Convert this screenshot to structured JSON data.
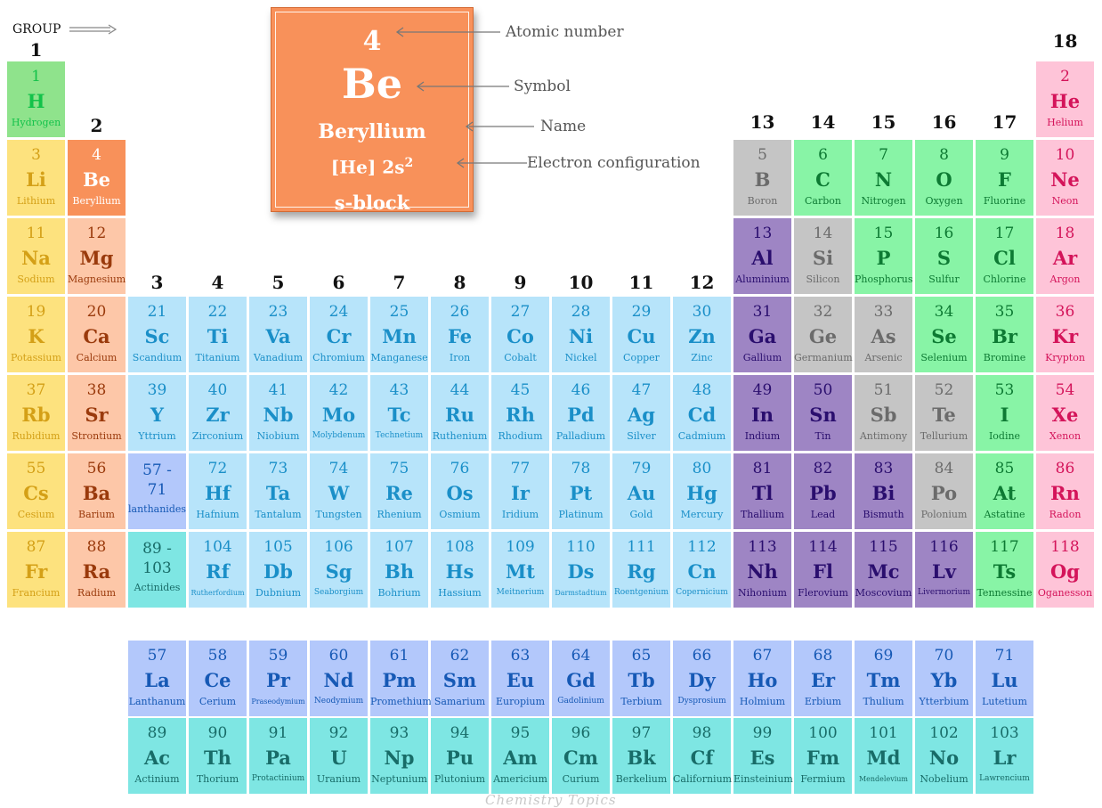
{
  "colors": {
    "alkali": {
      "bg": "#fde27e",
      "fg": "#d4a017"
    },
    "alkaline": {
      "bg": "#fdc7a8",
      "fg": "#9a3a0c"
    },
    "transition": {
      "bg": "#b7e4fa",
      "fg": "#1a8fc8"
    },
    "lanthanide": {
      "bg": "#b3c8fb",
      "fg": "#1659b5"
    },
    "actinide": {
      "bg": "#7ee6e3",
      "fg": "#186c68"
    },
    "postTransition": {
      "bg": "#9e85c4",
      "fg": "#2a0e6e"
    },
    "metalloid": {
      "bg": "#c5c5c5",
      "fg": "#6b6b6b"
    },
    "nonmetal": {
      "bg": "#88f4a6",
      "fg": "#0d7a33"
    },
    "noble": {
      "bg": "#fec4d8",
      "fg": "#d4145a"
    },
    "hydrogen": {
      "bg": "#8fe38c",
      "fg": "#13c24a"
    },
    "beryllium": {
      "bg": "#f8915a",
      "fg": "#ffffff"
    }
  },
  "group_label": "GROUP",
  "group_numbers": [
    "1",
    "2",
    "3",
    "4",
    "5",
    "6",
    "7",
    "8",
    "9",
    "10",
    "11",
    "12",
    "13",
    "14",
    "15",
    "16",
    "17",
    "18"
  ],
  "legend": {
    "number": "4",
    "symbol": "Be",
    "name": "Beryllium",
    "configuration": "[He] 2s",
    "configuration_sup": "2",
    "block": "s-block",
    "labels": {
      "atomic_number": "Atomic number",
      "symbol": "Symbol",
      "name": "Name",
      "configuration": "Electron configuration"
    }
  },
  "elements": [
    {
      "n": "1",
      "s": "H",
      "name": "Hydrogen",
      "cat": "hydrogen",
      "row": 1,
      "col": 1
    },
    {
      "n": "2",
      "s": "He",
      "name": "Helium",
      "cat": "noble",
      "row": 1,
      "col": 18
    },
    {
      "n": "3",
      "s": "Li",
      "name": "Lithium",
      "cat": "alkali",
      "row": 2,
      "col": 1
    },
    {
      "n": "4",
      "s": "Be",
      "name": "Beryllium",
      "cat": "beryllium",
      "row": 2,
      "col": 2
    },
    {
      "n": "5",
      "s": "B",
      "name": "Boron",
      "cat": "metalloid",
      "row": 2,
      "col": 13
    },
    {
      "n": "6",
      "s": "C",
      "name": "Carbon",
      "cat": "nonmetal",
      "row": 2,
      "col": 14
    },
    {
      "n": "7",
      "s": "N",
      "name": "Nitrogen",
      "cat": "nonmetal",
      "row": 2,
      "col": 15
    },
    {
      "n": "8",
      "s": "O",
      "name": "Oxygen",
      "cat": "nonmetal",
      "row": 2,
      "col": 16
    },
    {
      "n": "9",
      "s": "F",
      "name": "Fluorine",
      "cat": "nonmetal",
      "row": 2,
      "col": 17
    },
    {
      "n": "10",
      "s": "Ne",
      "name": "Neon",
      "cat": "noble",
      "row": 2,
      "col": 18
    },
    {
      "n": "11",
      "s": "Na",
      "name": "Sodium",
      "cat": "alkali",
      "row": 3,
      "col": 1
    },
    {
      "n": "12",
      "s": "Mg",
      "name": "Magnesium",
      "cat": "alkaline",
      "row": 3,
      "col": 2
    },
    {
      "n": "13",
      "s": "Al",
      "name": "Aluminium",
      "cat": "postTransition",
      "row": 3,
      "col": 13
    },
    {
      "n": "14",
      "s": "Si",
      "name": "Silicon",
      "cat": "metalloid",
      "row": 3,
      "col": 14
    },
    {
      "n": "15",
      "s": "P",
      "name": "Phosphorus",
      "cat": "nonmetal",
      "row": 3,
      "col": 15
    },
    {
      "n": "16",
      "s": "S",
      "name": "Sulfur",
      "cat": "nonmetal",
      "row": 3,
      "col": 16
    },
    {
      "n": "17",
      "s": "Cl",
      "name": "Chlorine",
      "cat": "nonmetal",
      "row": 3,
      "col": 17
    },
    {
      "n": "18",
      "s": "Ar",
      "name": "Argon",
      "cat": "noble",
      "row": 3,
      "col": 18
    },
    {
      "n": "19",
      "s": "K",
      "name": "Potassium",
      "cat": "alkali",
      "row": 4,
      "col": 1
    },
    {
      "n": "20",
      "s": "Ca",
      "name": "Calcium",
      "cat": "alkaline",
      "row": 4,
      "col": 2
    },
    {
      "n": "21",
      "s": "Sc",
      "name": "Scandium",
      "cat": "transition",
      "row": 4,
      "col": 3
    },
    {
      "n": "22",
      "s": "Ti",
      "name": "Titanium",
      "cat": "transition",
      "row": 4,
      "col": 4
    },
    {
      "n": "23",
      "s": "Va",
      "name": "Vanadium",
      "cat": "transition",
      "row": 4,
      "col": 5
    },
    {
      "n": "24",
      "s": "Cr",
      "name": "Chromium",
      "cat": "transition",
      "row": 4,
      "col": 6
    },
    {
      "n": "25",
      "s": "Mn",
      "name": "Manganese",
      "cat": "transition",
      "row": 4,
      "col": 7
    },
    {
      "n": "26",
      "s": "Fe",
      "name": "Iron",
      "cat": "transition",
      "row": 4,
      "col": 8
    },
    {
      "n": "27",
      "s": "Co",
      "name": "Cobalt",
      "cat": "transition",
      "row": 4,
      "col": 9
    },
    {
      "n": "28",
      "s": "Ni",
      "name": "Nickel",
      "cat": "transition",
      "row": 4,
      "col": 10
    },
    {
      "n": "29",
      "s": "Cu",
      "name": "Copper",
      "cat": "transition",
      "row": 4,
      "col": 11
    },
    {
      "n": "30",
      "s": "Zn",
      "name": "Zinc",
      "cat": "transition",
      "row": 4,
      "col": 12
    },
    {
      "n": "31",
      "s": "Ga",
      "name": "Gallium",
      "cat": "postTransition",
      "row": 4,
      "col": 13
    },
    {
      "n": "32",
      "s": "Ge",
      "name": "Germanium",
      "cat": "metalloid",
      "row": 4,
      "col": 14
    },
    {
      "n": "33",
      "s": "As",
      "name": "Arsenic",
      "cat": "metalloid",
      "row": 4,
      "col": 15
    },
    {
      "n": "34",
      "s": "Se",
      "name": "Selenium",
      "cat": "nonmetal",
      "row": 4,
      "col": 16
    },
    {
      "n": "35",
      "s": "Br",
      "name": "Bromine",
      "cat": "nonmetal",
      "row": 4,
      "col": 17
    },
    {
      "n": "36",
      "s": "Kr",
      "name": "Krypton",
      "cat": "noble",
      "row": 4,
      "col": 18
    },
    {
      "n": "37",
      "s": "Rb",
      "name": "Rubidium",
      "cat": "alkali",
      "row": 5,
      "col": 1
    },
    {
      "n": "38",
      "s": "Sr",
      "name": "Strontium",
      "cat": "alkaline",
      "row": 5,
      "col": 2
    },
    {
      "n": "39",
      "s": "Y",
      "name": "Yttrium",
      "cat": "transition",
      "row": 5,
      "col": 3
    },
    {
      "n": "40",
      "s": "Zr",
      "name": "Zirconium",
      "cat": "transition",
      "row": 5,
      "col": 4
    },
    {
      "n": "41",
      "s": "Nb",
      "name": "Niobium",
      "cat": "transition",
      "row": 5,
      "col": 5
    },
    {
      "n": "42",
      "s": "Mo",
      "name": "Molybdenum",
      "cat": "transition",
      "row": 5,
      "col": 6,
      "sz": "small"
    },
    {
      "n": "43",
      "s": "Tc",
      "name": "Technetium",
      "cat": "transition",
      "row": 5,
      "col": 7,
      "sz": "small"
    },
    {
      "n": "44",
      "s": "Ru",
      "name": "Ruthenium",
      "cat": "transition",
      "row": 5,
      "col": 8
    },
    {
      "n": "45",
      "s": "Rh",
      "name": "Rhodium",
      "cat": "transition",
      "row": 5,
      "col": 9
    },
    {
      "n": "46",
      "s": "Pd",
      "name": "Palladium",
      "cat": "transition",
      "row": 5,
      "col": 10
    },
    {
      "n": "47",
      "s": "Ag",
      "name": "Silver",
      "cat": "transition",
      "row": 5,
      "col": 11
    },
    {
      "n": "48",
      "s": "Cd",
      "name": "Cadmium",
      "cat": "transition",
      "row": 5,
      "col": 12
    },
    {
      "n": "49",
      "s": "In",
      "name": "Indium",
      "cat": "postTransition",
      "row": 5,
      "col": 13
    },
    {
      "n": "50",
      "s": "Sn",
      "name": "Tin",
      "cat": "postTransition",
      "row": 5,
      "col": 14
    },
    {
      "n": "51",
      "s": "Sb",
      "name": "Antimony",
      "cat": "metalloid",
      "row": 5,
      "col": 15
    },
    {
      "n": "52",
      "s": "Te",
      "name": "Tellurium",
      "cat": "metalloid",
      "row": 5,
      "col": 16
    },
    {
      "n": "53",
      "s": "I",
      "name": "Iodine",
      "cat": "nonmetal",
      "row": 5,
      "col": 17
    },
    {
      "n": "54",
      "s": "Xe",
      "name": "Xenon",
      "cat": "noble",
      "row": 5,
      "col": 18
    },
    {
      "n": "55",
      "s": "Cs",
      "name": "Cesium",
      "cat": "alkali",
      "row": 6,
      "col": 1
    },
    {
      "n": "56",
      "s": "Ba",
      "name": "Barium",
      "cat": "alkaline",
      "row": 6,
      "col": 2
    },
    {
      "n": "72",
      "s": "Hf",
      "name": "Hafnium",
      "cat": "transition",
      "row": 6,
      "col": 4
    },
    {
      "n": "73",
      "s": "Ta",
      "name": "Tantalum",
      "cat": "transition",
      "row": 6,
      "col": 5
    },
    {
      "n": "74",
      "s": "W",
      "name": "Tungsten",
      "cat": "transition",
      "row": 6,
      "col": 6
    },
    {
      "n": "75",
      "s": "Re",
      "name": "Rhenium",
      "cat": "transition",
      "row": 6,
      "col": 7
    },
    {
      "n": "76",
      "s": "Os",
      "name": "Osmium",
      "cat": "transition",
      "row": 6,
      "col": 8
    },
    {
      "n": "77",
      "s": "Ir",
      "name": "Iridium",
      "cat": "transition",
      "row": 6,
      "col": 9
    },
    {
      "n": "78",
      "s": "Pt",
      "name": "Platinum",
      "cat": "transition",
      "row": 6,
      "col": 10
    },
    {
      "n": "79",
      "s": "Au",
      "name": "Gold",
      "cat": "transition",
      "row": 6,
      "col": 11
    },
    {
      "n": "80",
      "s": "Hg",
      "name": "Mercury",
      "cat": "transition",
      "row": 6,
      "col": 12
    },
    {
      "n": "81",
      "s": "Tl",
      "name": "Thallium",
      "cat": "postTransition",
      "row": 6,
      "col": 13
    },
    {
      "n": "82",
      "s": "Pb",
      "name": "Lead",
      "cat": "postTransition",
      "row": 6,
      "col": 14
    },
    {
      "n": "83",
      "s": "Bi",
      "name": "Bismuth",
      "cat": "postTransition",
      "row": 6,
      "col": 15
    },
    {
      "n": "84",
      "s": "Po",
      "name": "Polonium",
      "cat": "metalloid",
      "row": 6,
      "col": 16
    },
    {
      "n": "85",
      "s": "At",
      "name": "Astatine",
      "cat": "nonmetal",
      "row": 6,
      "col": 17
    },
    {
      "n": "86",
      "s": "Rn",
      "name": "Radon",
      "cat": "noble",
      "row": 6,
      "col": 18
    },
    {
      "n": "87",
      "s": "Fr",
      "name": "Francium",
      "cat": "alkali",
      "row": 7,
      "col": 1
    },
    {
      "n": "88",
      "s": "Ra",
      "name": "Radium",
      "cat": "alkaline",
      "row": 7,
      "col": 2
    },
    {
      "n": "104",
      "s": "Rf",
      "name": "Rutherfordium",
      "cat": "transition",
      "row": 7,
      "col": 4,
      "sz": "tiny"
    },
    {
      "n": "105",
      "s": "Db",
      "name": "Dubnium",
      "cat": "transition",
      "row": 7,
      "col": 5
    },
    {
      "n": "106",
      "s": "Sg",
      "name": "Seaborgium",
      "cat": "transition",
      "row": 7,
      "col": 6,
      "sz": "small"
    },
    {
      "n": "107",
      "s": "Bh",
      "name": "Bohrium",
      "cat": "transition",
      "row": 7,
      "col": 7
    },
    {
      "n": "108",
      "s": "Hs",
      "name": "Hassium",
      "cat": "transition",
      "row": 7,
      "col": 8
    },
    {
      "n": "109",
      "s": "Mt",
      "name": "Meitnerium",
      "cat": "transition",
      "row": 7,
      "col": 9,
      "sz": "small"
    },
    {
      "n": "110",
      "s": "Ds",
      "name": "Darmstadtium",
      "cat": "transition",
      "row": 7,
      "col": 10,
      "sz": "tiny"
    },
    {
      "n": "111",
      "s": "Rg",
      "name": "Roentgenium",
      "cat": "transition",
      "row": 7,
      "col": 11,
      "sz": "small"
    },
    {
      "n": "112",
      "s": "Cn",
      "name": "Copernicium",
      "cat": "transition",
      "row": 7,
      "col": 12,
      "sz": "small"
    },
    {
      "n": "113",
      "s": "Nh",
      "name": "Nihonium",
      "cat": "postTransition",
      "row": 7,
      "col": 13
    },
    {
      "n": "114",
      "s": "Fl",
      "name": "Flerovium",
      "cat": "postTransition",
      "row": 7,
      "col": 14
    },
    {
      "n": "115",
      "s": "Mc",
      "name": "Moscovium",
      "cat": "postTransition",
      "row": 7,
      "col": 15
    },
    {
      "n": "116",
      "s": "Lv",
      "name": "Livermorium",
      "cat": "postTransition",
      "row": 7,
      "col": 16,
      "sz": "small"
    },
    {
      "n": "117",
      "s": "Ts",
      "name": "Tennessine",
      "cat": "nonmetal",
      "row": 7,
      "col": 17
    },
    {
      "n": "118",
      "s": "Og",
      "name": "Oganesson",
      "cat": "noble",
      "row": 7,
      "col": 18
    },
    {
      "n": "57",
      "s": "La",
      "name": "Lanthanum",
      "cat": "lanthanide",
      "row": 9,
      "col": 3
    },
    {
      "n": "58",
      "s": "Ce",
      "name": "Cerium",
      "cat": "lanthanide",
      "row": 9,
      "col": 4
    },
    {
      "n": "59",
      "s": "Pr",
      "name": "Praseodymium",
      "cat": "lanthanide",
      "row": 9,
      "col": 5,
      "sz": "tiny"
    },
    {
      "n": "60",
      "s": "Nd",
      "name": "Neodymium",
      "cat": "lanthanide",
      "row": 9,
      "col": 6,
      "sz": "small"
    },
    {
      "n": "61",
      "s": "Pm",
      "name": "Promethium",
      "cat": "lanthanide",
      "row": 9,
      "col": 7
    },
    {
      "n": "62",
      "s": "Sm",
      "name": "Samarium",
      "cat": "lanthanide",
      "row": 9,
      "col": 8
    },
    {
      "n": "63",
      "s": "Eu",
      "name": "Europium",
      "cat": "lanthanide",
      "row": 9,
      "col": 9
    },
    {
      "n": "64",
      "s": "Gd",
      "name": "Gadolinium",
      "cat": "lanthanide",
      "row": 9,
      "col": 10,
      "sz": "small"
    },
    {
      "n": "65",
      "s": "Tb",
      "name": "Terbium",
      "cat": "lanthanide",
      "row": 9,
      "col": 11
    },
    {
      "n": "66",
      "s": "Dy",
      "name": "Dysprosium",
      "cat": "lanthanide",
      "row": 9,
      "col": 12,
      "sz": "small"
    },
    {
      "n": "67",
      "s": "Ho",
      "name": "Holmium",
      "cat": "lanthanide",
      "row": 9,
      "col": 13
    },
    {
      "n": "68",
      "s": "Er",
      "name": "Erbium",
      "cat": "lanthanide",
      "row": 9,
      "col": 14
    },
    {
      "n": "69",
      "s": "Tm",
      "name": "Thulium",
      "cat": "lanthanide",
      "row": 9,
      "col": 15
    },
    {
      "n": "70",
      "s": "Yb",
      "name": "Ytterbium",
      "cat": "lanthanide",
      "row": 9,
      "col": 16
    },
    {
      "n": "71",
      "s": "Lu",
      "name": "Lutetium",
      "cat": "lanthanide",
      "row": 9,
      "col": 17
    },
    {
      "n": "89",
      "s": "Ac",
      "name": "Actinium",
      "cat": "actinide",
      "row": 10,
      "col": 3
    },
    {
      "n": "90",
      "s": "Th",
      "name": "Thorium",
      "cat": "actinide",
      "row": 10,
      "col": 4
    },
    {
      "n": "91",
      "s": "Pa",
      "name": "Protactinium",
      "cat": "actinide",
      "row": 10,
      "col": 5,
      "sz": "small"
    },
    {
      "n": "92",
      "s": "U",
      "name": "Uranium",
      "cat": "actinide",
      "row": 10,
      "col": 6
    },
    {
      "n": "93",
      "s": "Np",
      "name": "Neptunium",
      "cat": "actinide",
      "row": 10,
      "col": 7
    },
    {
      "n": "94",
      "s": "Pu",
      "name": "Plutonium",
      "cat": "actinide",
      "row": 10,
      "col": 8
    },
    {
      "n": "95",
      "s": "Am",
      "name": "Americium",
      "cat": "actinide",
      "row": 10,
      "col": 9
    },
    {
      "n": "96",
      "s": "Cm",
      "name": "Curium",
      "cat": "actinide",
      "row": 10,
      "col": 10
    },
    {
      "n": "97",
      "s": "Bk",
      "name": "Berkelium",
      "cat": "actinide",
      "row": 10,
      "col": 11
    },
    {
      "n": "98",
      "s": "Cf",
      "name": "Californium",
      "cat": "actinide",
      "row": 10,
      "col": 12
    },
    {
      "n": "99",
      "s": "Es",
      "name": "Einsteinium",
      "cat": "actinide",
      "row": 10,
      "col": 13
    },
    {
      "n": "100",
      "s": "Fm",
      "name": "Fermium",
      "cat": "actinide",
      "row": 10,
      "col": 14
    },
    {
      "n": "101",
      "s": "Md",
      "name": "Mendelevium",
      "cat": "actinide",
      "row": 10,
      "col": 15,
      "sz": "tiny"
    },
    {
      "n": "102",
      "s": "No",
      "name": "Nobelium",
      "cat": "actinide",
      "row": 10,
      "col": 16
    },
    {
      "n": "103",
      "s": "Lr",
      "name": "Lawrencium",
      "cat": "actinide",
      "row": 10,
      "col": 17,
      "sz": "small"
    }
  ],
  "placeholders": [
    {
      "range": "57 -\n71",
      "label": "lanthanides",
      "cat": "lanthanide",
      "row": 6,
      "col": 3
    },
    {
      "range": "89 -\n103",
      "label": "Actinides",
      "cat": "actinide",
      "row": 7,
      "col": 3
    }
  ],
  "watermark": "Chemistry Topics"
}
